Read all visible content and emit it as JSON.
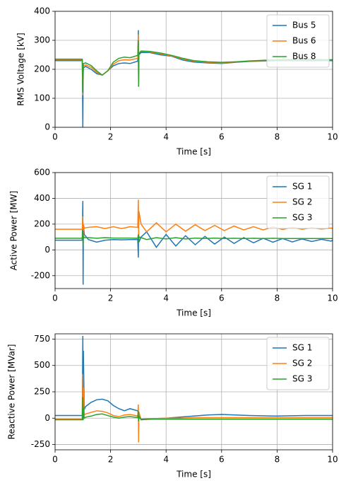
{
  "chart_data": [
    {
      "type": "line",
      "x_label": "Time [s]",
      "y_label": "RMS Voltage [kV]",
      "x": [
        0,
        0.98,
        1.0,
        1.01,
        1.02,
        1.1,
        1.3,
        1.5,
        1.7,
        1.9,
        2.1,
        2.3,
        2.5,
        2.7,
        2.98,
        3.0,
        3.01,
        3.02,
        3.1,
        3.4,
        3.8,
        4.2,
        4.6,
        5,
        5.5,
        6,
        6.5,
        7,
        8,
        9,
        10
      ],
      "series": [
        {
          "name": "Bus 5",
          "color": "#1f77b4",
          "values": [
            230,
            230,
            0,
            150,
            205,
            210,
            200,
            185,
            180,
            195,
            212,
            220,
            222,
            220,
            228,
            335,
            140,
            250,
            258,
            258,
            250,
            245,
            232,
            225,
            222,
            220,
            224,
            227,
            230,
            230,
            230
          ]
        },
        {
          "name": "Bus 6",
          "color": "#ff7f0e",
          "values": [
            233,
            233,
            110,
            190,
            212,
            215,
            207,
            190,
            180,
            195,
            218,
            230,
            233,
            232,
            238,
            320,
            150,
            255,
            262,
            260,
            254,
            246,
            236,
            228,
            224,
            222,
            225,
            228,
            232,
            233,
            232
          ]
        },
        {
          "name": "Bus 8",
          "color": "#2ca02c",
          "values": [
            235,
            235,
            120,
            200,
            220,
            222,
            213,
            195,
            180,
            195,
            225,
            238,
            242,
            240,
            248,
            300,
            140,
            255,
            263,
            262,
            256,
            248,
            238,
            230,
            226,
            224,
            226,
            229,
            233,
            234,
            233
          ]
        }
      ],
      "xlim": [
        0,
        10
      ],
      "xticks": [
        0,
        2,
        4,
        6,
        8,
        10
      ],
      "ylim": [
        0,
        400
      ],
      "yticks": [
        0,
        100,
        200,
        300,
        400
      ],
      "grid": true,
      "legend": "upper right"
    },
    {
      "type": "line",
      "x_label": "Time [s]",
      "y_label": "Active Power [MW]",
      "x": [
        0,
        0.98,
        1.0,
        1.01,
        1.02,
        1.05,
        1.2,
        1.5,
        1.8,
        2.1,
        2.4,
        2.7,
        2.98,
        3.0,
        3.01,
        3.02,
        3.1,
        3.3,
        3.65,
        4.0,
        4.35,
        4.7,
        5.05,
        5.4,
        5.75,
        6.1,
        6.45,
        6.8,
        7.15,
        7.5,
        7.85,
        8.2,
        8.55,
        8.9,
        9.25,
        9.6,
        9.95,
        10
      ],
      "series": [
        {
          "name": "SG 1",
          "color": "#1f77b4",
          "values": [
            75,
            75,
            380,
            -270,
            200,
            120,
            80,
            60,
            75,
            80,
            78,
            80,
            80,
            -60,
            150,
            60,
            100,
            140,
            20,
            120,
            30,
            110,
            40,
            105,
            45,
            100,
            50,
            95,
            55,
            90,
            60,
            88,
            62,
            85,
            65,
            82,
            68,
            75
          ]
        },
        {
          "name": "SG 2",
          "color": "#ff7f0e",
          "values": [
            160,
            160,
            260,
            60,
            200,
            170,
            175,
            180,
            165,
            180,
            165,
            180,
            175,
            390,
            110,
            300,
            200,
            140,
            210,
            140,
            200,
            145,
            195,
            150,
            190,
            150,
            185,
            155,
            180,
            155,
            178,
            158,
            175,
            160,
            172,
            162,
            170,
            165
          ]
        },
        {
          "name": "SG 3",
          "color": "#2ca02c",
          "values": [
            90,
            90,
            150,
            30,
            110,
            95,
            95,
            90,
            95,
            92,
            92,
            92,
            90,
            120,
            60,
            100,
            95,
            80,
            95,
            85,
            95,
            85,
            92,
            88,
            92,
            88,
            90,
            88,
            90,
            88,
            90,
            88,
            88,
            88,
            88,
            88,
            88,
            88
          ]
        }
      ],
      "xlim": [
        0,
        10
      ],
      "xticks": [
        0,
        2,
        4,
        6,
        8,
        10
      ],
      "ylim": [
        -300,
        600
      ],
      "yticks": [
        -200,
        0,
        200,
        400,
        600
      ],
      "grid": true,
      "legend": "upper right"
    },
    {
      "type": "line",
      "x_label": "Time [s]",
      "y_label": "Reactive Power [MVar]",
      "x": [
        0,
        0.98,
        1.0,
        1.01,
        1.02,
        1.05,
        1.1,
        1.3,
        1.5,
        1.7,
        1.9,
        2.1,
        2.3,
        2.5,
        2.7,
        2.98,
        3.0,
        3.01,
        3.02,
        3.1,
        3.5,
        4,
        4.5,
        5,
        5.5,
        6,
        6.5,
        7,
        8,
        9,
        10
      ],
      "series": [
        {
          "name": "SG 1",
          "color": "#1f77b4",
          "values": [
            25,
            25,
            780,
            100,
            640,
            80,
            110,
            150,
            175,
            180,
            165,
            120,
            90,
            70,
            90,
            70,
            40,
            0,
            10,
            -10,
            -5,
            0,
            10,
            20,
            30,
            35,
            30,
            25,
            20,
            25,
            25
          ]
        },
        {
          "name": "SG 2",
          "color": "#ff7f0e",
          "values": [
            -10,
            -10,
            420,
            180,
            290,
            30,
            40,
            55,
            70,
            65,
            50,
            25,
            15,
            30,
            35,
            20,
            130,
            -230,
            60,
            -15,
            -5,
            0,
            0,
            5,
            5,
            5,
            5,
            5,
            5,
            5,
            5
          ]
        },
        {
          "name": "SG 3",
          "color": "#2ca02c",
          "values": [
            -15,
            -15,
            200,
            -20,
            100,
            0,
            10,
            20,
            35,
            40,
            25,
            10,
            0,
            10,
            15,
            5,
            70,
            -30,
            20,
            -15,
            -10,
            -10,
            -10,
            -10,
            -10,
            -10,
            -10,
            -10,
            -10,
            -10,
            -10
          ]
        }
      ],
      "xlim": [
        0,
        10
      ],
      "xticks": [
        0,
        2,
        4,
        6,
        8,
        10
      ],
      "ylim": [
        -300,
        800
      ],
      "yticks": [
        -250,
        0,
        250,
        500,
        750
      ],
      "grid": true,
      "legend": "upper right"
    }
  ]
}
